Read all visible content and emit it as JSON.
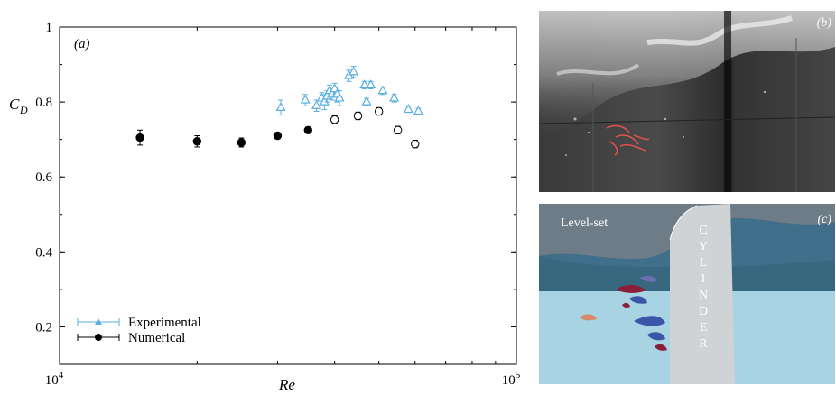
{
  "chart_data": {
    "type": "scatter",
    "panel_label": "(a)",
    "xlabel": "Re",
    "ylabel": "C",
    "ylabel_subscript": "D",
    "x_scale": "log",
    "xlim": [
      10000,
      100000
    ],
    "ylim": [
      0.1,
      1.0
    ],
    "x_ticks": [
      {
        "value": 10000,
        "base": "10",
        "exp": "4"
      },
      {
        "value": 100000,
        "base": "10",
        "exp": "5"
      }
    ],
    "y_ticks": [
      {
        "value": 0.2,
        "label": "0.2"
      },
      {
        "value": 0.4,
        "label": "0.4"
      },
      {
        "value": 0.6,
        "label": "0.6"
      },
      {
        "value": 0.8,
        "label": "0.8"
      },
      {
        "value": 1.0,
        "label": "1"
      }
    ],
    "legend_position": "bottom-left",
    "series": [
      {
        "name": "Experimental",
        "marker": "triangle-open",
        "color": "#5aaee0",
        "points": [
          {
            "x": 30500,
            "y": 0.785,
            "err": 0.02
          },
          {
            "x": 34500,
            "y": 0.805,
            "err": 0.015
          },
          {
            "x": 36500,
            "y": 0.79,
            "err": 0.015
          },
          {
            "x": 37500,
            "y": 0.81,
            "err": 0.015
          },
          {
            "x": 38000,
            "y": 0.8,
            "err": 0.02
          },
          {
            "x": 38500,
            "y": 0.815,
            "err": 0.015
          },
          {
            "x": 39000,
            "y": 0.83,
            "err": 0.015
          },
          {
            "x": 39500,
            "y": 0.82,
            "err": 0.015
          },
          {
            "x": 40000,
            "y": 0.835,
            "err": 0.015
          },
          {
            "x": 40500,
            "y": 0.82,
            "err": 0.02
          },
          {
            "x": 41000,
            "y": 0.81,
            "err": 0.02
          },
          {
            "x": 43000,
            "y": 0.87,
            "err": 0.015
          },
          {
            "x": 44000,
            "y": 0.88,
            "err": 0.015
          },
          {
            "x": 46500,
            "y": 0.845,
            "err": 0.01
          },
          {
            "x": 48000,
            "y": 0.845,
            "err": 0.01
          },
          {
            "x": 47000,
            "y": 0.8,
            "err": 0.01
          },
          {
            "x": 51000,
            "y": 0.83,
            "err": 0.01
          },
          {
            "x": 54000,
            "y": 0.81,
            "err": 0.01
          },
          {
            "x": 58000,
            "y": 0.78,
            "err": 0.008
          },
          {
            "x": 61000,
            "y": 0.775,
            "err": 0.008
          }
        ]
      },
      {
        "name": "Numerical",
        "marker": "circle-filled",
        "color": "#000000",
        "points": [
          {
            "x": 15000,
            "y": 0.705,
            "err": 0.02,
            "filled": true
          },
          {
            "x": 20000,
            "y": 0.695,
            "err": 0.015,
            "filled": true
          },
          {
            "x": 25000,
            "y": 0.692,
            "err": 0.012,
            "filled": true
          },
          {
            "x": 30000,
            "y": 0.71,
            "err": 0.008,
            "filled": true
          },
          {
            "x": 35000,
            "y": 0.725,
            "err": 0.008,
            "filled": true
          },
          {
            "x": 40000,
            "y": 0.753,
            "err": 0.01,
            "filled": false
          },
          {
            "x": 45000,
            "y": 0.763,
            "err": 0.01,
            "filled": false
          },
          {
            "x": 50000,
            "y": 0.775,
            "err": 0.01,
            "filled": false
          },
          {
            "x": 55000,
            "y": 0.725,
            "err": 0.01,
            "filled": false
          },
          {
            "x": 60000,
            "y": 0.688,
            "err": 0.01,
            "filled": false
          }
        ]
      }
    ]
  },
  "photos": {
    "b": {
      "label": "(b)"
    },
    "c": {
      "label": "(c)",
      "levelset_text": "Level-set",
      "cylinder_letters": [
        "C",
        "Y",
        "L",
        "I",
        "N",
        "D",
        "E",
        "R"
      ]
    }
  },
  "colors": {
    "experimental": "#5aaee0",
    "numerical": "#000000",
    "water_surface": "#3f6f8a",
    "water_body": "#a7d3e2",
    "cylinder": "#cfd3d6",
    "vortex_dark": "#3d55a6",
    "vortex_red": "#8b1f3a"
  }
}
